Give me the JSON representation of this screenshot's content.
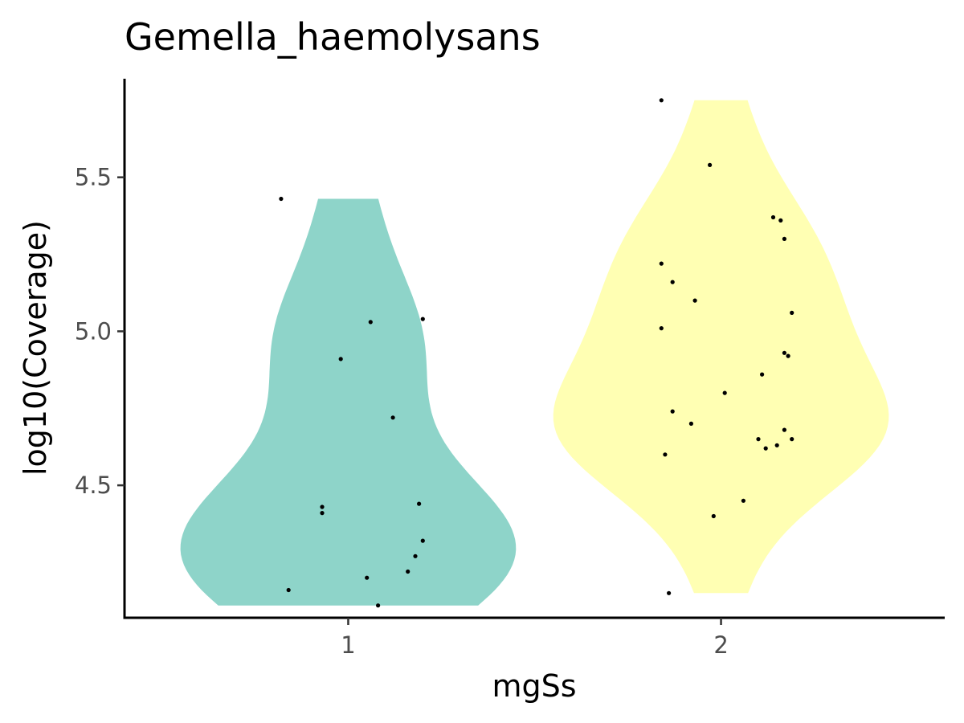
{
  "chart_data": {
    "type": "violin",
    "title": "Gemella_haemolysans",
    "xlabel": "mgSs",
    "ylabel": "log10(Coverage)",
    "categories": [
      "1",
      "2"
    ],
    "ylim": [
      4.07,
      5.82
    ],
    "yticks": [
      "4.5",
      "5.0",
      "5.5"
    ],
    "grid": false,
    "legend": "none",
    "fill_colors": [
      "#8ED4C9",
      "#FFFFB3"
    ],
    "point_color": "#000000",
    "groups": [
      {
        "category": "1",
        "points": [
          {
            "xj": 0.82,
            "y": 5.43
          },
          {
            "xj": 1.06,
            "y": 5.03
          },
          {
            "xj": 1.2,
            "y": 5.04
          },
          {
            "xj": 0.98,
            "y": 4.91
          },
          {
            "xj": 1.12,
            "y": 4.72
          },
          {
            "xj": 0.93,
            "y": 4.43
          },
          {
            "xj": 0.93,
            "y": 4.41
          },
          {
            "xj": 1.19,
            "y": 4.44
          },
          {
            "xj": 1.2,
            "y": 4.32
          },
          {
            "xj": 1.18,
            "y": 4.27
          },
          {
            "xj": 1.16,
            "y": 4.22
          },
          {
            "xj": 1.05,
            "y": 4.2
          },
          {
            "xj": 0.84,
            "y": 4.16
          },
          {
            "xj": 1.08,
            "y": 4.11
          }
        ]
      },
      {
        "category": "2",
        "points": [
          {
            "xj": 1.84,
            "y": 5.75
          },
          {
            "xj": 1.97,
            "y": 5.54
          },
          {
            "xj": 2.14,
            "y": 5.37
          },
          {
            "xj": 2.16,
            "y": 5.36
          },
          {
            "xj": 2.17,
            "y": 5.3
          },
          {
            "xj": 1.84,
            "y": 5.22
          },
          {
            "xj": 1.87,
            "y": 5.16
          },
          {
            "xj": 1.93,
            "y": 5.1
          },
          {
            "xj": 2.19,
            "y": 5.06
          },
          {
            "xj": 1.84,
            "y": 5.01
          },
          {
            "xj": 2.17,
            "y": 4.93
          },
          {
            "xj": 2.18,
            "y": 4.92
          },
          {
            "xj": 2.11,
            "y": 4.86
          },
          {
            "xj": 2.01,
            "y": 4.8
          },
          {
            "xj": 1.87,
            "y": 4.74
          },
          {
            "xj": 1.92,
            "y": 4.7
          },
          {
            "xj": 2.17,
            "y": 4.68
          },
          {
            "xj": 2.19,
            "y": 4.65
          },
          {
            "xj": 2.1,
            "y": 4.65
          },
          {
            "xj": 2.15,
            "y": 4.63
          },
          {
            "xj": 2.12,
            "y": 4.62
          },
          {
            "xj": 1.85,
            "y": 4.6
          },
          {
            "xj": 2.06,
            "y": 4.45
          },
          {
            "xj": 1.98,
            "y": 4.4
          },
          {
            "xj": 1.86,
            "y": 4.15
          }
        ]
      }
    ]
  }
}
